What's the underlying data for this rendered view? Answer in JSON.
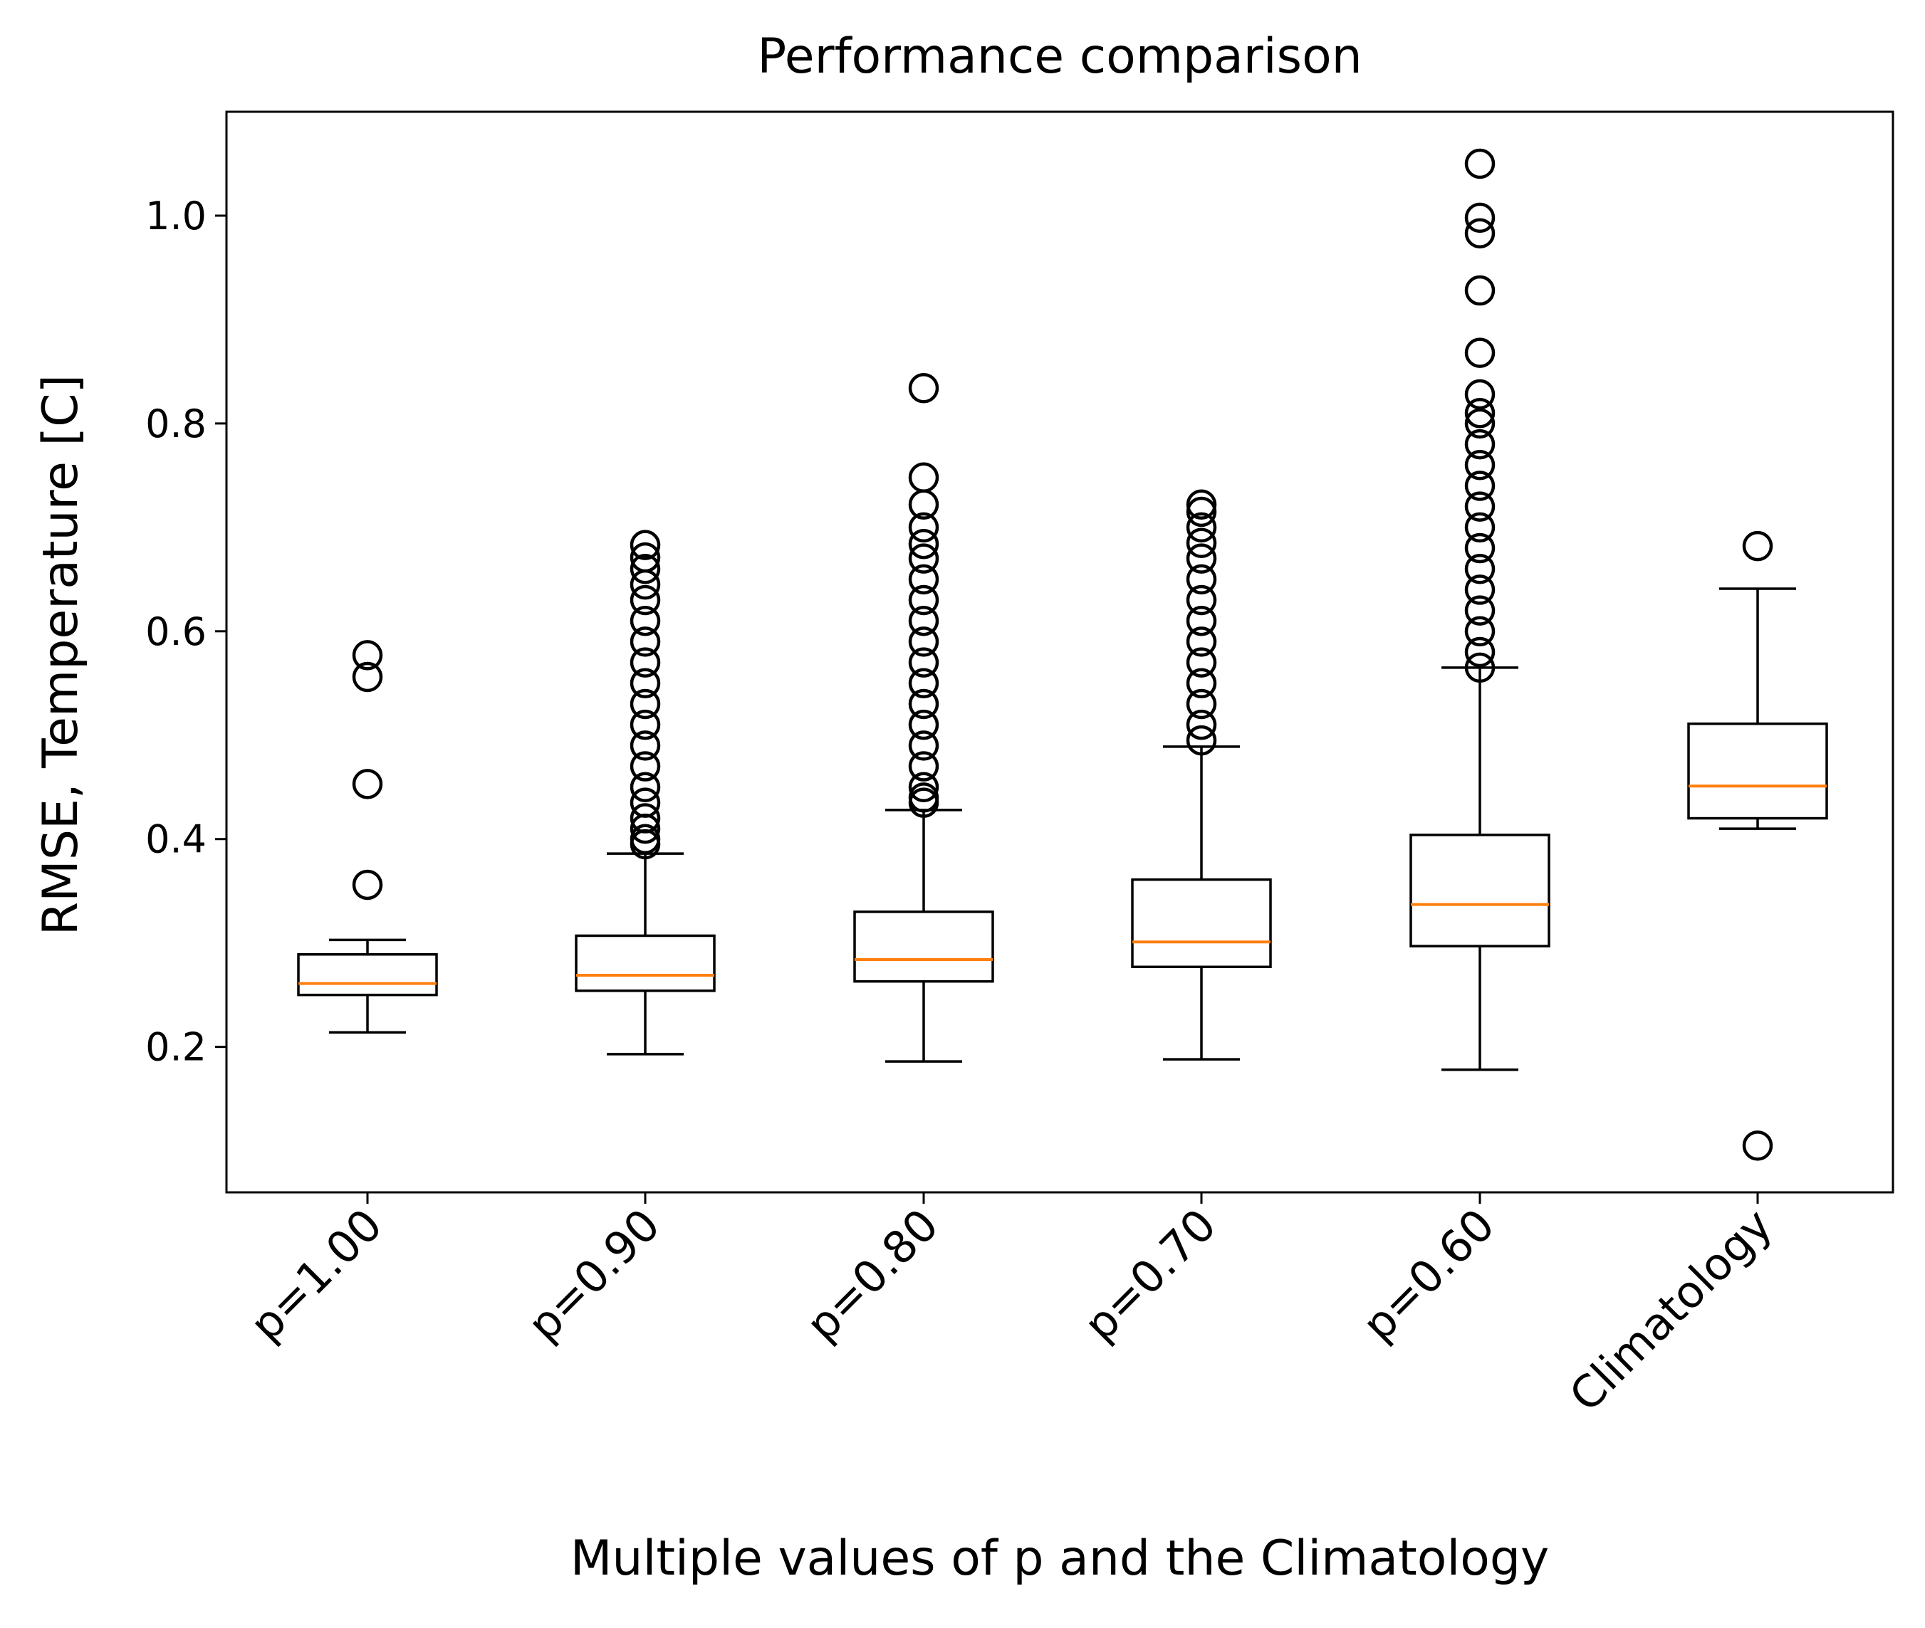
{
  "chart_data": {
    "type": "box",
    "title": "Performance comparison",
    "xlabel": "Multiple values of p and the Climatology",
    "ylabel": "RMSE, Temperature [C]",
    "categories": [
      "p=1.00",
      "p=0.90",
      "p=0.80",
      "p=0.70",
      "p=0.60",
      "Climatology"
    ],
    "ylim": [
      0.06,
      1.1
    ],
    "yticks": [
      {
        "value": 0.2,
        "label": "0.2"
      },
      {
        "value": 0.4,
        "label": "0.4"
      },
      {
        "value": 0.6,
        "label": "0.6"
      },
      {
        "value": 0.8,
        "label": "0.8"
      },
      {
        "value": 1.0,
        "label": "1.0"
      }
    ],
    "grid": false,
    "legend": "none",
    "colors": {
      "box": "#000000",
      "median": "#ff7f0e",
      "flier": "#000000"
    },
    "boxes": [
      {
        "category": "p=1.00",
        "whislo": 0.214,
        "q1": 0.25,
        "median": 0.261,
        "q3": 0.289,
        "whishi": 0.303,
        "fliers": [
          0.356,
          0.453,
          0.556,
          0.577
        ]
      },
      {
        "category": "p=0.90",
        "whislo": 0.193,
        "q1": 0.254,
        "median": 0.269,
        "q3": 0.307,
        "whishi": 0.386,
        "fliers": [
          0.395,
          0.4,
          0.41,
          0.42,
          0.435,
          0.45,
          0.47,
          0.49,
          0.51,
          0.53,
          0.55,
          0.57,
          0.59,
          0.61,
          0.63,
          0.645,
          0.66,
          0.671,
          0.683
        ]
      },
      {
        "category": "p=0.80",
        "whislo": 0.186,
        "q1": 0.263,
        "median": 0.284,
        "q3": 0.33,
        "whishi": 0.428,
        "fliers": [
          0.435,
          0.44,
          0.45,
          0.47,
          0.49,
          0.51,
          0.53,
          0.55,
          0.57,
          0.59,
          0.61,
          0.63,
          0.65,
          0.67,
          0.684,
          0.7,
          0.722,
          0.748,
          0.834
        ]
      },
      {
        "category": "p=0.70",
        "whislo": 0.188,
        "q1": 0.277,
        "median": 0.301,
        "q3": 0.361,
        "whishi": 0.489,
        "fliers": [
          0.495,
          0.51,
          0.53,
          0.55,
          0.57,
          0.59,
          0.61,
          0.63,
          0.65,
          0.67,
          0.685,
          0.7,
          0.715,
          0.722
        ]
      },
      {
        "category": "p=0.60",
        "whislo": 0.178,
        "q1": 0.297,
        "median": 0.337,
        "q3": 0.404,
        "whishi": 0.565,
        "fliers": [
          0.565,
          0.58,
          0.6,
          0.62,
          0.64,
          0.66,
          0.68,
          0.7,
          0.72,
          0.74,
          0.76,
          0.78,
          0.8,
          0.81,
          0.828,
          0.868,
          0.928,
          0.983,
          0.998,
          1.05
        ]
      },
      {
        "category": "Climatology",
        "whislo": 0.41,
        "q1": 0.42,
        "median": 0.451,
        "q3": 0.511,
        "whishi": 0.641,
        "fliers": [
          0.105,
          0.682
        ]
      }
    ]
  }
}
